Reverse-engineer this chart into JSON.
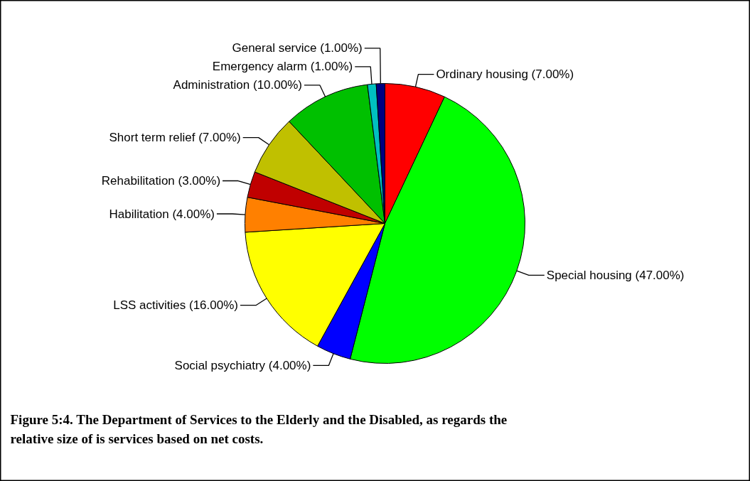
{
  "chart_data": {
    "type": "pie",
    "categories": [
      "Ordinary housing",
      "Special housing",
      "Social psychiatry",
      "LSS activities",
      "Habilitation",
      "Rehabilitation",
      "Short term relief",
      "Administration",
      "Emergency alarm",
      "General service"
    ],
    "values": [
      7,
      47,
      4,
      16,
      4,
      3,
      7,
      10,
      1,
      1
    ],
    "value_labels": [
      "(7.00%)",
      "(47.00%)",
      "(4.00%)",
      "(16.00%)",
      "(4.00%)",
      "(3.00%)",
      "(7.00%)",
      "(10.00%)",
      "(1.00%)",
      "(1.00%)"
    ],
    "colors": [
      "#ff0000",
      "#00ff00",
      "#0000ff",
      "#ffff00",
      "#ff8000",
      "#c00000",
      "#c0c000",
      "#00c000",
      "#00c0c0",
      "#000080"
    ],
    "annotations": [
      "Figure 5:4. The Department of Services to the Elderly and the Disabled, as regards the relative size of is services based on net costs."
    ]
  }
}
